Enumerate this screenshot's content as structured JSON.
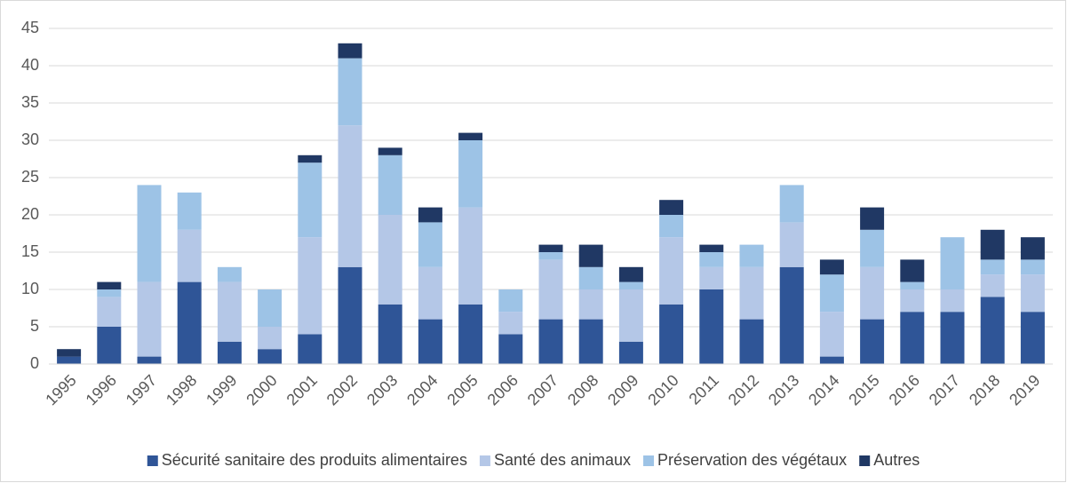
{
  "chart_data": {
    "type": "bar",
    "stacked": true,
    "categories": [
      "1995",
      "1996",
      "1997",
      "1998",
      "1999",
      "2000",
      "2001",
      "2002",
      "2003",
      "2004",
      "2005",
      "2006",
      "2007",
      "2008",
      "2009",
      "2010",
      "2011",
      "2012",
      "2013",
      "2014",
      "2015",
      "2016",
      "2017",
      "2018",
      "2019"
    ],
    "series": [
      {
        "name": "Sécurité sanitaire des produits alimentaires",
        "color": "#2f5597",
        "values": [
          1,
          5,
          1,
          11,
          3,
          2,
          4,
          13,
          8,
          6,
          8,
          4,
          6,
          6,
          3,
          8,
          10,
          6,
          13,
          1,
          6,
          7,
          7,
          9,
          7
        ]
      },
      {
        "name": "Santé des animaux",
        "color": "#b4c7e7",
        "values": [
          0,
          4,
          10,
          7,
          8,
          3,
          13,
          19,
          12,
          7,
          13,
          3,
          8,
          4,
          7,
          9,
          3,
          7,
          6,
          6,
          7,
          3,
          3,
          3,
          5
        ]
      },
      {
        "name": "Préservation des végétaux",
        "color": "#9dc3e6",
        "values": [
          0,
          1,
          13,
          5,
          2,
          5,
          10,
          9,
          8,
          6,
          9,
          3,
          1,
          3,
          1,
          3,
          2,
          3,
          5,
          5,
          5,
          1,
          7,
          2,
          2
        ]
      },
      {
        "name": "Autres",
        "color": "#203864",
        "values": [
          1,
          1,
          0,
          0,
          0,
          0,
          1,
          2,
          1,
          2,
          1,
          0,
          1,
          3,
          2,
          2,
          1,
          0,
          0,
          2,
          3,
          3,
          0,
          4,
          3
        ]
      }
    ],
    "ylim": [
      0,
      45
    ],
    "yticks": [
      0,
      5,
      10,
      15,
      20,
      25,
      30,
      35,
      40,
      45
    ],
    "grid": true,
    "legend": "bottom"
  }
}
